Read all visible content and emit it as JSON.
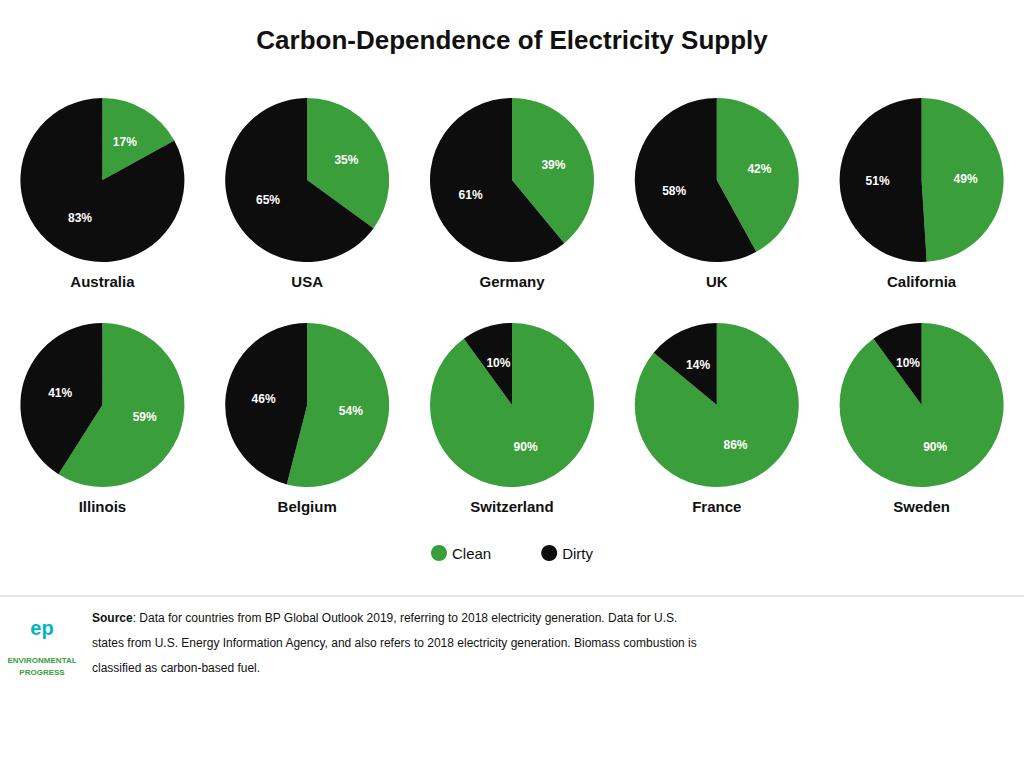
{
  "chart_data": {
    "type": "pie",
    "title": "Carbon-Dependence of Electricity Supply",
    "categories": [
      "Clean",
      "Dirty"
    ],
    "colors": [
      "#3a9e3a",
      "#0d0d0d"
    ],
    "data_labels": true,
    "legend": "bottom",
    "series": [
      {
        "name": "Australia",
        "values": [
          17,
          83
        ],
        "value_labels": [
          "17%",
          "83%"
        ]
      },
      {
        "name": "USA",
        "values": [
          35,
          65
        ],
        "value_labels": [
          "35%",
          "65%"
        ]
      },
      {
        "name": "Germany",
        "values": [
          39,
          61
        ],
        "value_labels": [
          "39%",
          "61%"
        ]
      },
      {
        "name": "UK",
        "values": [
          42,
          58
        ],
        "value_labels": [
          "42%",
          "58%"
        ]
      },
      {
        "name": "California",
        "values": [
          49,
          51
        ],
        "value_labels": [
          "49%",
          "51%"
        ]
      },
      {
        "name": "Illinois",
        "values": [
          59,
          41
        ],
        "value_labels": [
          "59%",
          "41%"
        ]
      },
      {
        "name": "Belgium",
        "values": [
          54,
          46
        ],
        "value_labels": [
          "54%",
          "46%"
        ]
      },
      {
        "name": "Switzerland",
        "values": [
          90,
          10
        ],
        "value_labels": [
          "90%",
          "10%"
        ]
      },
      {
        "name": "France",
        "values": [
          86,
          14
        ],
        "value_labels": [
          "86%",
          "14%"
        ]
      },
      {
        "name": "Sweden",
        "values": [
          90,
          10
        ],
        "value_labels": [
          "90%",
          "10%"
        ]
      }
    ],
    "annotations": [
      {
        "text": "ep",
        "color": "#00b4c8"
      },
      {
        "text": "ENVIRONMENTAL",
        "color": "#3a9e3a"
      },
      {
        "text": "PROGRESS",
        "color": "#3a9e3a"
      },
      {
        "text": "Source"
      },
      {
        "text": ": Data for countries from BP Global Outlook 2019, referring to 2018 electricity generation. Data for U.S."
      },
      {
        "text": "states from U.S. Energy Information Agency, and also refers to 2018 electricity generation. Biomass combustion is"
      },
      {
        "text": "classified as carbon-based fuel."
      }
    ]
  }
}
